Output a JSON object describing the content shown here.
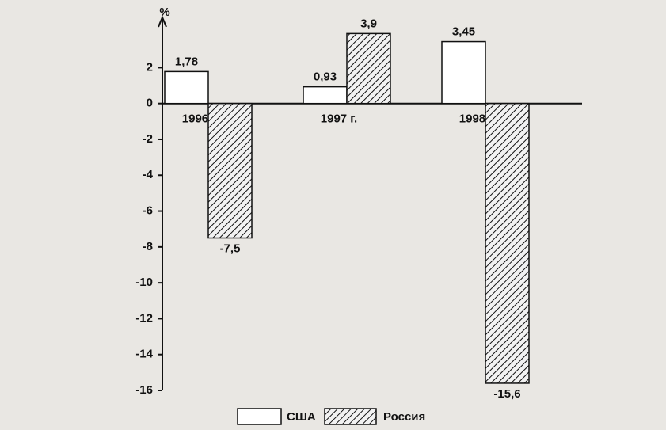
{
  "chart_data": {
    "type": "bar",
    "y_label": "%",
    "categories": [
      "1996 г.",
      "1997 г.",
      "1998 г."
    ],
    "series": [
      {
        "name": "США",
        "color": "#ffffff",
        "values": [
          1.78,
          0.93,
          3.45
        ],
        "value_labels": [
          "1,78",
          "0,93",
          "3,45"
        ]
      },
      {
        "name": "Россия",
        "color": "hatch",
        "values": [
          -7.5,
          3.9,
          -15.6
        ],
        "value_labels": [
          "-7,5",
          "3,9",
          "-15,6"
        ]
      }
    ],
    "ylim": [
      -16,
      4.8
    ],
    "yticks": [
      2,
      0,
      -2,
      -4,
      -6,
      -8,
      -10,
      -12,
      -14,
      -16
    ],
    "legend": "bottom"
  }
}
